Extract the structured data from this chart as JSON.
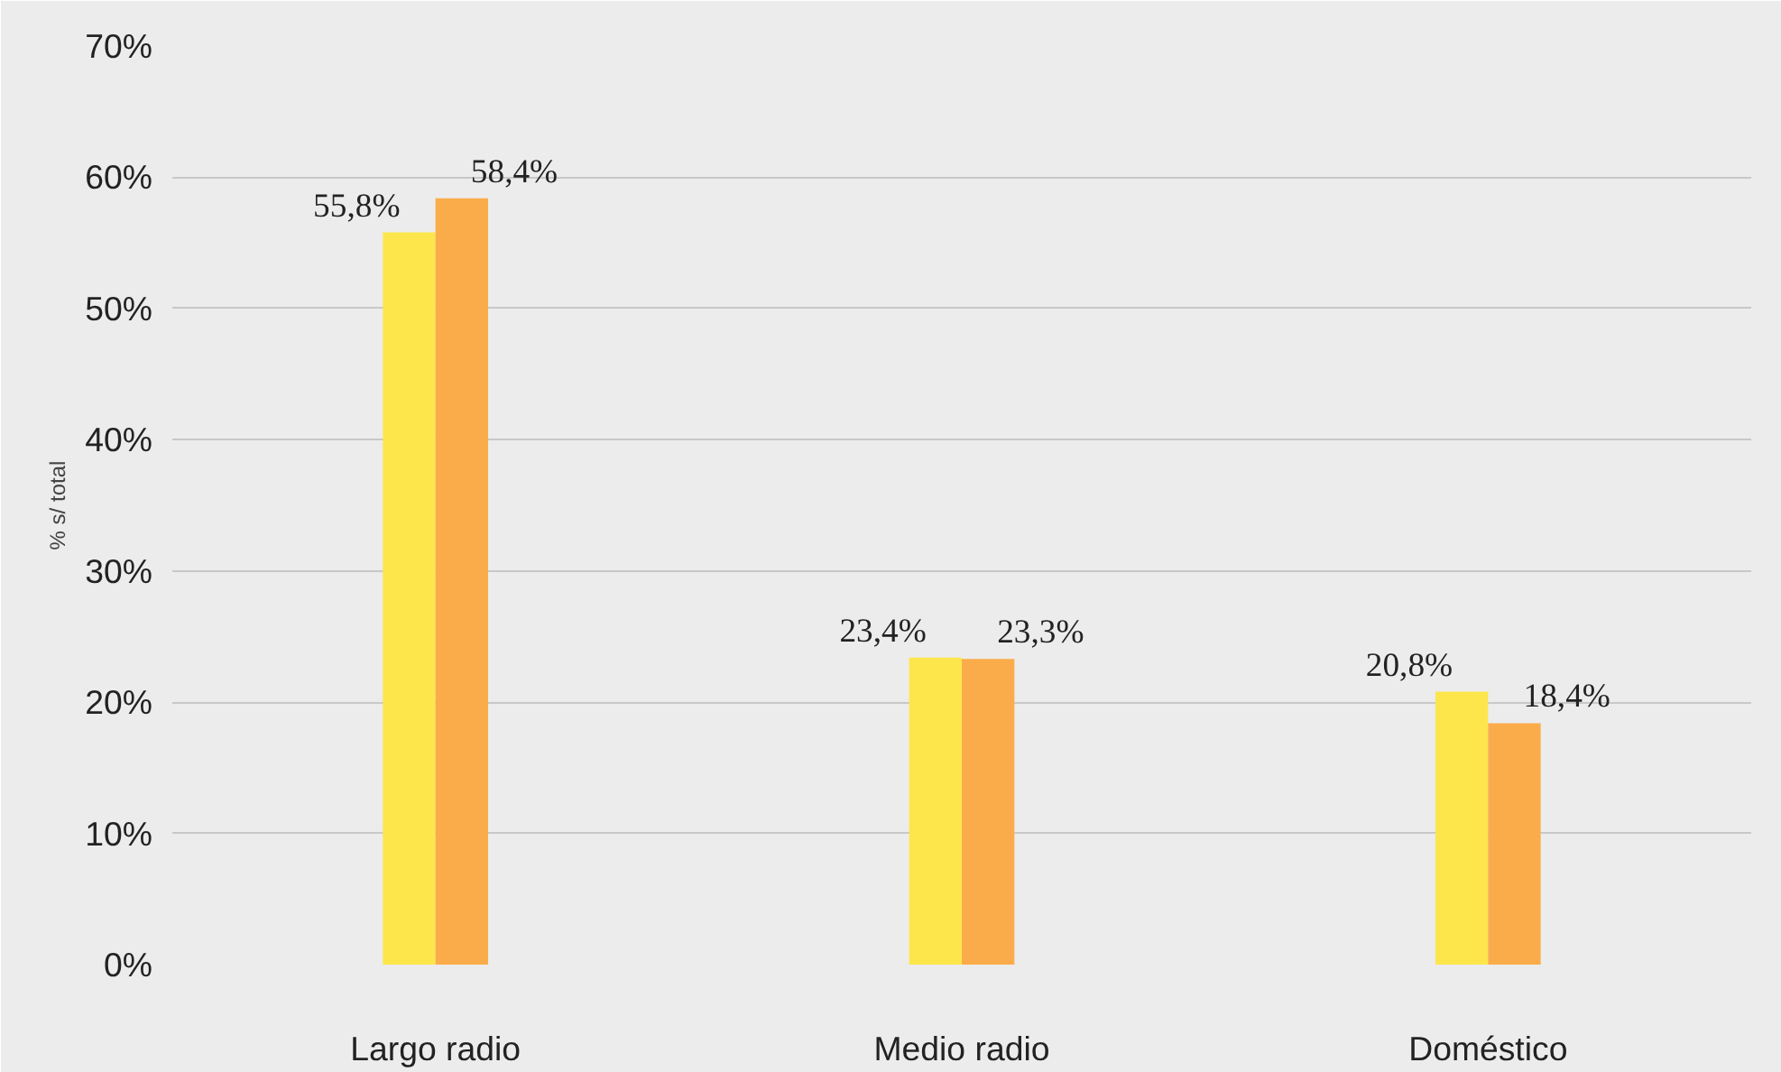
{
  "chart_data": {
    "type": "bar",
    "ylabel": "% s/ total",
    "categories": [
      "Largo radio",
      "Medio radio",
      "Doméstico"
    ],
    "series": [
      {
        "color": "#fde64b",
        "values": [
          55.8,
          23.4,
          20.8
        ],
        "value_labels": [
          "55,8%",
          "23,4%",
          "20,8%"
        ]
      },
      {
        "color": "#fbac4a",
        "values": [
          58.4,
          23.3,
          18.4
        ],
        "value_labels": [
          "58,4%",
          "23,3%",
          "18,4%"
        ]
      }
    ],
    "ylim": [
      0,
      70
    ],
    "yticks": [
      {
        "value": 0,
        "label": "0%"
      },
      {
        "value": 10,
        "label": "10%"
      },
      {
        "value": 20,
        "label": "20%"
      },
      {
        "value": 30,
        "label": "30%"
      },
      {
        "value": 40,
        "label": "40%"
      },
      {
        "value": 50,
        "label": "50%"
      },
      {
        "value": 60,
        "label": "60%"
      },
      {
        "value": 70,
        "label": "70%"
      }
    ],
    "grid": "y"
  }
}
